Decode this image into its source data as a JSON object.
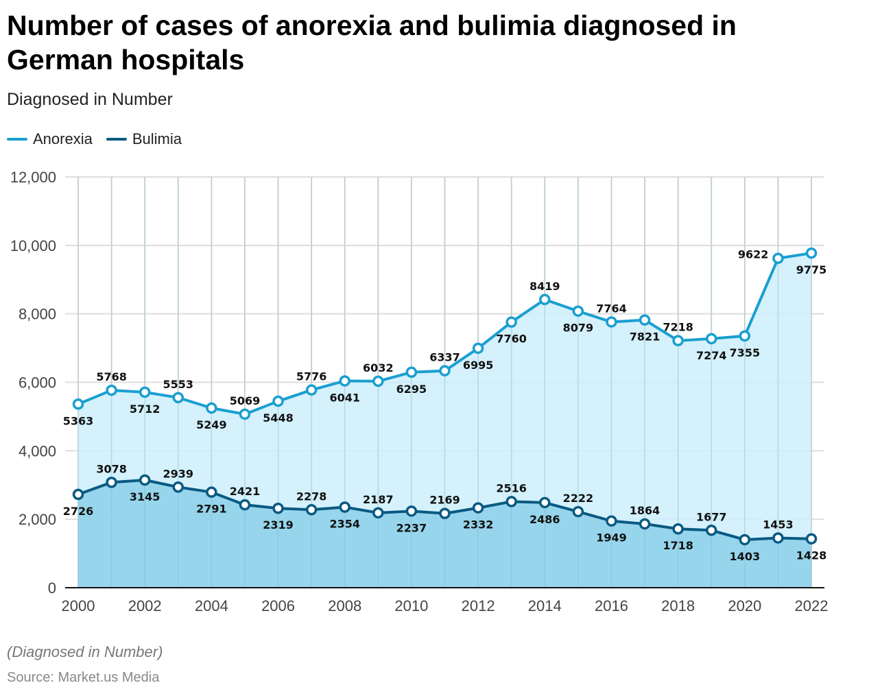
{
  "title": "Number of cases of anorexia and bulimia diagnosed in German hospitals",
  "subtitle": "Diagnosed in Number",
  "note": "(Diagnosed in Number)",
  "source": "Source: Market.us Media",
  "chart_data": {
    "type": "area",
    "title": "Number of cases of anorexia and bulimia diagnosed in German hospitals",
    "xlabel": "",
    "ylabel": "Diagnosed in Number",
    "x": [
      2000,
      2001,
      2002,
      2003,
      2004,
      2005,
      2006,
      2007,
      2008,
      2009,
      2010,
      2011,
      2012,
      2013,
      2014,
      2015,
      2016,
      2017,
      2018,
      2019,
      2020,
      2021,
      2022
    ],
    "xticks": [
      "2000",
      "2002",
      "2004",
      "2006",
      "2008",
      "2010",
      "2012",
      "2014",
      "2016",
      "2018",
      "2020",
      "2022"
    ],
    "yticks": [
      "0",
      "2,000",
      "4,000",
      "6,000",
      "8,000",
      "10,000",
      "12,000"
    ],
    "ylim": [
      0,
      12000
    ],
    "grid": true,
    "legend_position": "top-left",
    "series": [
      {
        "name": "Anorexia",
        "color": "#1a9fd0",
        "fill": "#cdeefb",
        "values": [
          5363,
          5768,
          5712,
          5553,
          5249,
          5069,
          5448,
          5776,
          6041,
          6032,
          6295,
          6337,
          6995,
          7760,
          8419,
          8079,
          7764,
          7821,
          7218,
          7274,
          7355,
          9622,
          9775
        ],
        "label_pos": [
          "below",
          "above",
          "below",
          "above",
          "below",
          "above",
          "below",
          "above",
          "below",
          "above",
          "below",
          "above",
          "below",
          "below",
          "above",
          "below",
          "above",
          "below",
          "above",
          "below",
          "below",
          "left",
          "below"
        ]
      },
      {
        "name": "Bulimia",
        "color": "#0a5a82",
        "fill": "#8fd2ea",
        "values": [
          2726,
          3078,
          3145,
          2939,
          2791,
          2421,
          2319,
          2278,
          2354,
          2187,
          2237,
          2169,
          2332,
          2516,
          2486,
          2222,
          1949,
          1864,
          1718,
          1677,
          1403,
          1453,
          1428
        ],
        "label_pos": [
          "below",
          "above",
          "below",
          "above",
          "below",
          "above",
          "below",
          "above",
          "below",
          "above",
          "below",
          "above",
          "below",
          "above",
          "below",
          "above",
          "below",
          "above",
          "below",
          "above",
          "below",
          "above",
          "below"
        ]
      }
    ]
  }
}
